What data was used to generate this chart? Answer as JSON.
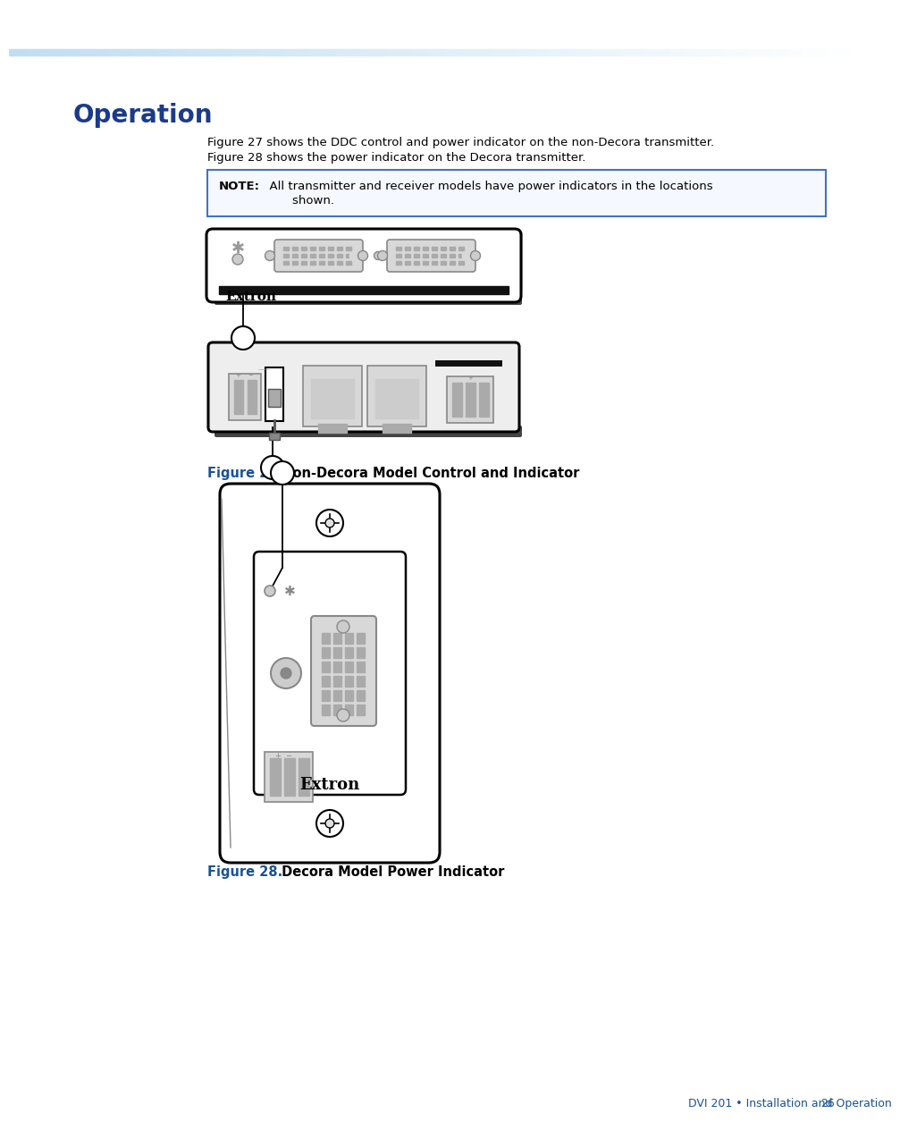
{
  "page_bg": "#ffffff",
  "title_text": "Operation",
  "title_color": "#1a3a8c",
  "body_text1": "Figure 27 shows the DDC control and power indicator on the non-Decora transmitter.",
  "body_text2": "Figure 28 shows the power indicator on the Decora transmitter.",
  "note_label": "NOTE:",
  "note_body": "  All transmitter and receiver models have power indicators in the locations",
  "note_body2": "shown.",
  "note_border_color": "#4472c4",
  "fig27_blue": "Figure 27.",
  "fig27_black": " Non-Decora Model Control and Indicator",
  "fig28_blue": "Figure 28.",
  "fig28_black": " Decora Model Power Indicator",
  "caption_blue": "#1a5296",
  "footer_text": "DVI 201 • Installation and Operation",
  "footer_page": "26",
  "footer_color": "#1a5296",
  "gray_connector": "#b0b0b0",
  "gray_light": "#d8d8d8",
  "gray_med": "#aaaaaa",
  "gray_dark": "#888888"
}
